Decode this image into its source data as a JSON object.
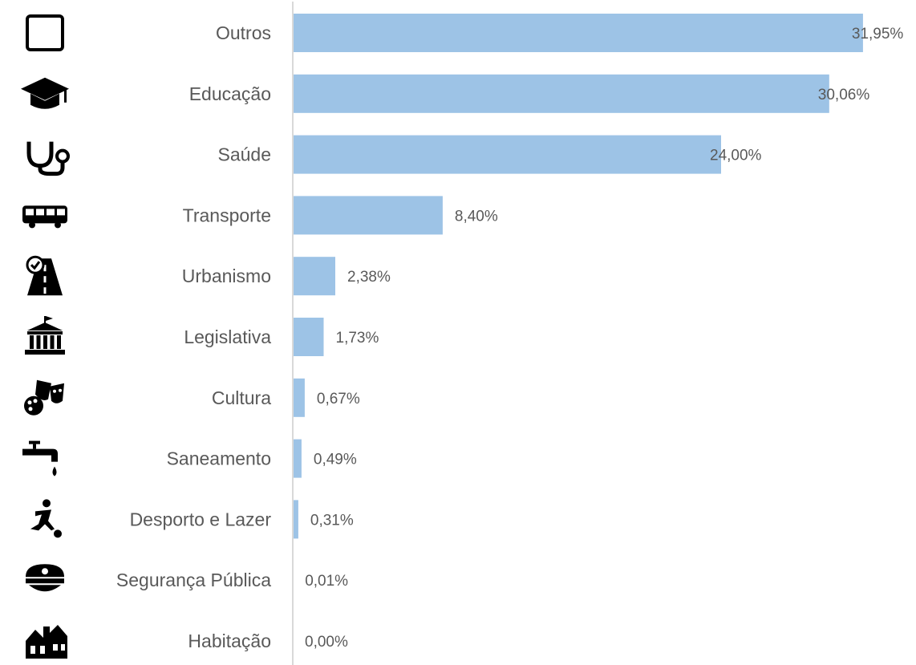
{
  "chart_data": {
    "type": "bar",
    "orientation": "horizontal",
    "categories": [
      "Outros",
      "Educação",
      "Saúde",
      "Transporte",
      "Urbanismo",
      "Legislativa",
      "Cultura",
      "Saneamento",
      "Desporto e Lazer",
      "Segurança Pública",
      "Habitação"
    ],
    "values": [
      31.95,
      30.06,
      24.0,
      8.4,
      2.38,
      1.73,
      0.67,
      0.49,
      0.31,
      0.01,
      0.0
    ],
    "value_labels": [
      "31,95%",
      "30,06%",
      "24,00%",
      "8,40%",
      "2,38%",
      "1,73%",
      "0,67%",
      "0,49%",
      "0,31%",
      "0,01%",
      "0,00%"
    ],
    "icons": [
      "empty-square-icon",
      "graduation-cap-icon",
      "stethoscope-icon",
      "bus-icon",
      "road-check-icon",
      "government-building-icon",
      "theater-masks-palette-icon",
      "water-faucet-icon",
      "soccer-player-icon",
      "police-cap-icon",
      "houses-icon"
    ],
    "unit": "%",
    "xlim": [
      0,
      32
    ],
    "grid": false,
    "legend": "none",
    "colors": {
      "bar": "#9dc3e6",
      "text": "#595959",
      "axis": "#d9d9d9",
      "icon": "#000000"
    }
  }
}
